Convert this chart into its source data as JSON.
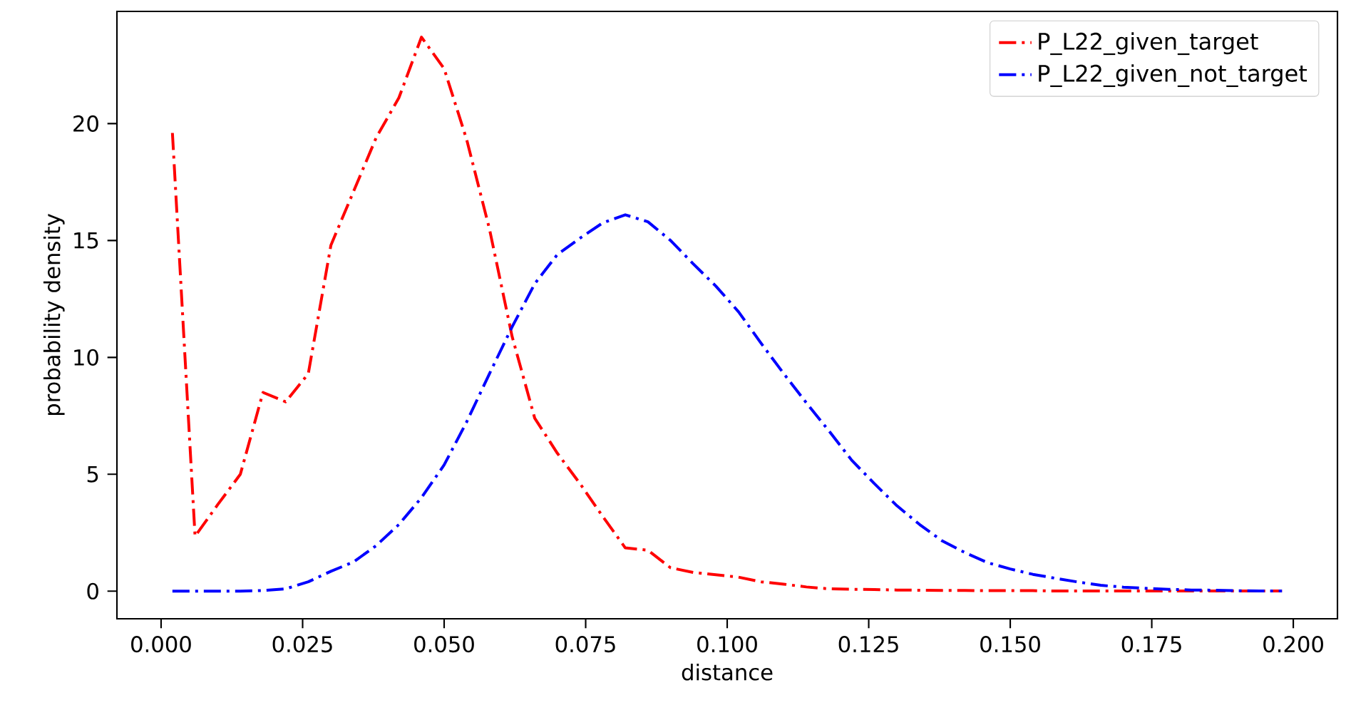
{
  "chart_data": {
    "type": "line",
    "xlabel": "distance",
    "ylabel": "probability density",
    "x": [
      0.002,
      0.006,
      0.01,
      0.014,
      0.018,
      0.022,
      0.026,
      0.03,
      0.034,
      0.038,
      0.042,
      0.046,
      0.05,
      0.054,
      0.058,
      0.062,
      0.066,
      0.07,
      0.074,
      0.078,
      0.082,
      0.086,
      0.09,
      0.094,
      0.098,
      0.102,
      0.106,
      0.11,
      0.114,
      0.118,
      0.122,
      0.126,
      0.13,
      0.134,
      0.138,
      0.142,
      0.146,
      0.15,
      0.154,
      0.158,
      0.162,
      0.166,
      0.17,
      0.174,
      0.178,
      0.182,
      0.186,
      0.19,
      0.194,
      0.198
    ],
    "series": [
      {
        "name": "P_L22_given_target",
        "color": "#ff0000",
        "values": [
          19.6,
          2.35,
          3.7,
          5.0,
          8.5,
          8.1,
          9.3,
          14.8,
          17.1,
          19.4,
          21.1,
          23.7,
          22.35,
          19.3,
          15.5,
          10.9,
          7.4,
          5.9,
          4.6,
          3.2,
          1.85,
          1.75,
          1.0,
          0.8,
          0.7,
          0.6,
          0.4,
          0.3,
          0.18,
          0.1,
          0.08,
          0.07,
          0.05,
          0.04,
          0.03,
          0.03,
          0.02,
          0.02,
          0.02,
          0.01,
          0.01,
          0.01,
          0.01,
          0.01,
          0.01,
          0.01,
          0.01,
          0.01,
          0.01,
          0.01
        ]
      },
      {
        "name": "P_L22_given_not_target",
        "color": "#0000ff",
        "values": [
          0,
          0,
          0,
          0,
          0.03,
          0.1,
          0.4,
          0.85,
          1.25,
          1.95,
          2.85,
          4.0,
          5.4,
          7.25,
          9.3,
          11.3,
          13.15,
          14.4,
          15.1,
          15.75,
          16.1,
          15.8,
          15.0,
          14.0,
          13.05,
          11.95,
          10.6,
          9.3,
          8.05,
          6.85,
          5.6,
          4.6,
          3.65,
          2.85,
          2.15,
          1.65,
          1.22,
          0.95,
          0.72,
          0.55,
          0.39,
          0.25,
          0.17,
          0.12,
          0.08,
          0.05,
          0.04,
          0.02,
          0.01,
          0.01
        ]
      }
    ],
    "xlim": [
      -0.0078,
      0.2078
    ],
    "ylim": [
      -1.18,
      24.8
    ],
    "xticks": [
      {
        "value": 0,
        "label": "0.000"
      },
      {
        "value": 0.025,
        "label": "0.025"
      },
      {
        "value": 0.05,
        "label": "0.050"
      },
      {
        "value": 0.075,
        "label": "0.075"
      },
      {
        "value": 0.1,
        "label": "0.100"
      },
      {
        "value": 0.125,
        "label": "0.125"
      },
      {
        "value": 0.15,
        "label": "0.150"
      },
      {
        "value": 0.175,
        "label": "0.175"
      },
      {
        "value": 0.2,
        "label": "0.200"
      }
    ],
    "yticks": [
      0,
      5,
      10,
      15,
      20
    ],
    "legend": "top right",
    "line_style": "dashdot",
    "marker": "none",
    "grid": false
  }
}
